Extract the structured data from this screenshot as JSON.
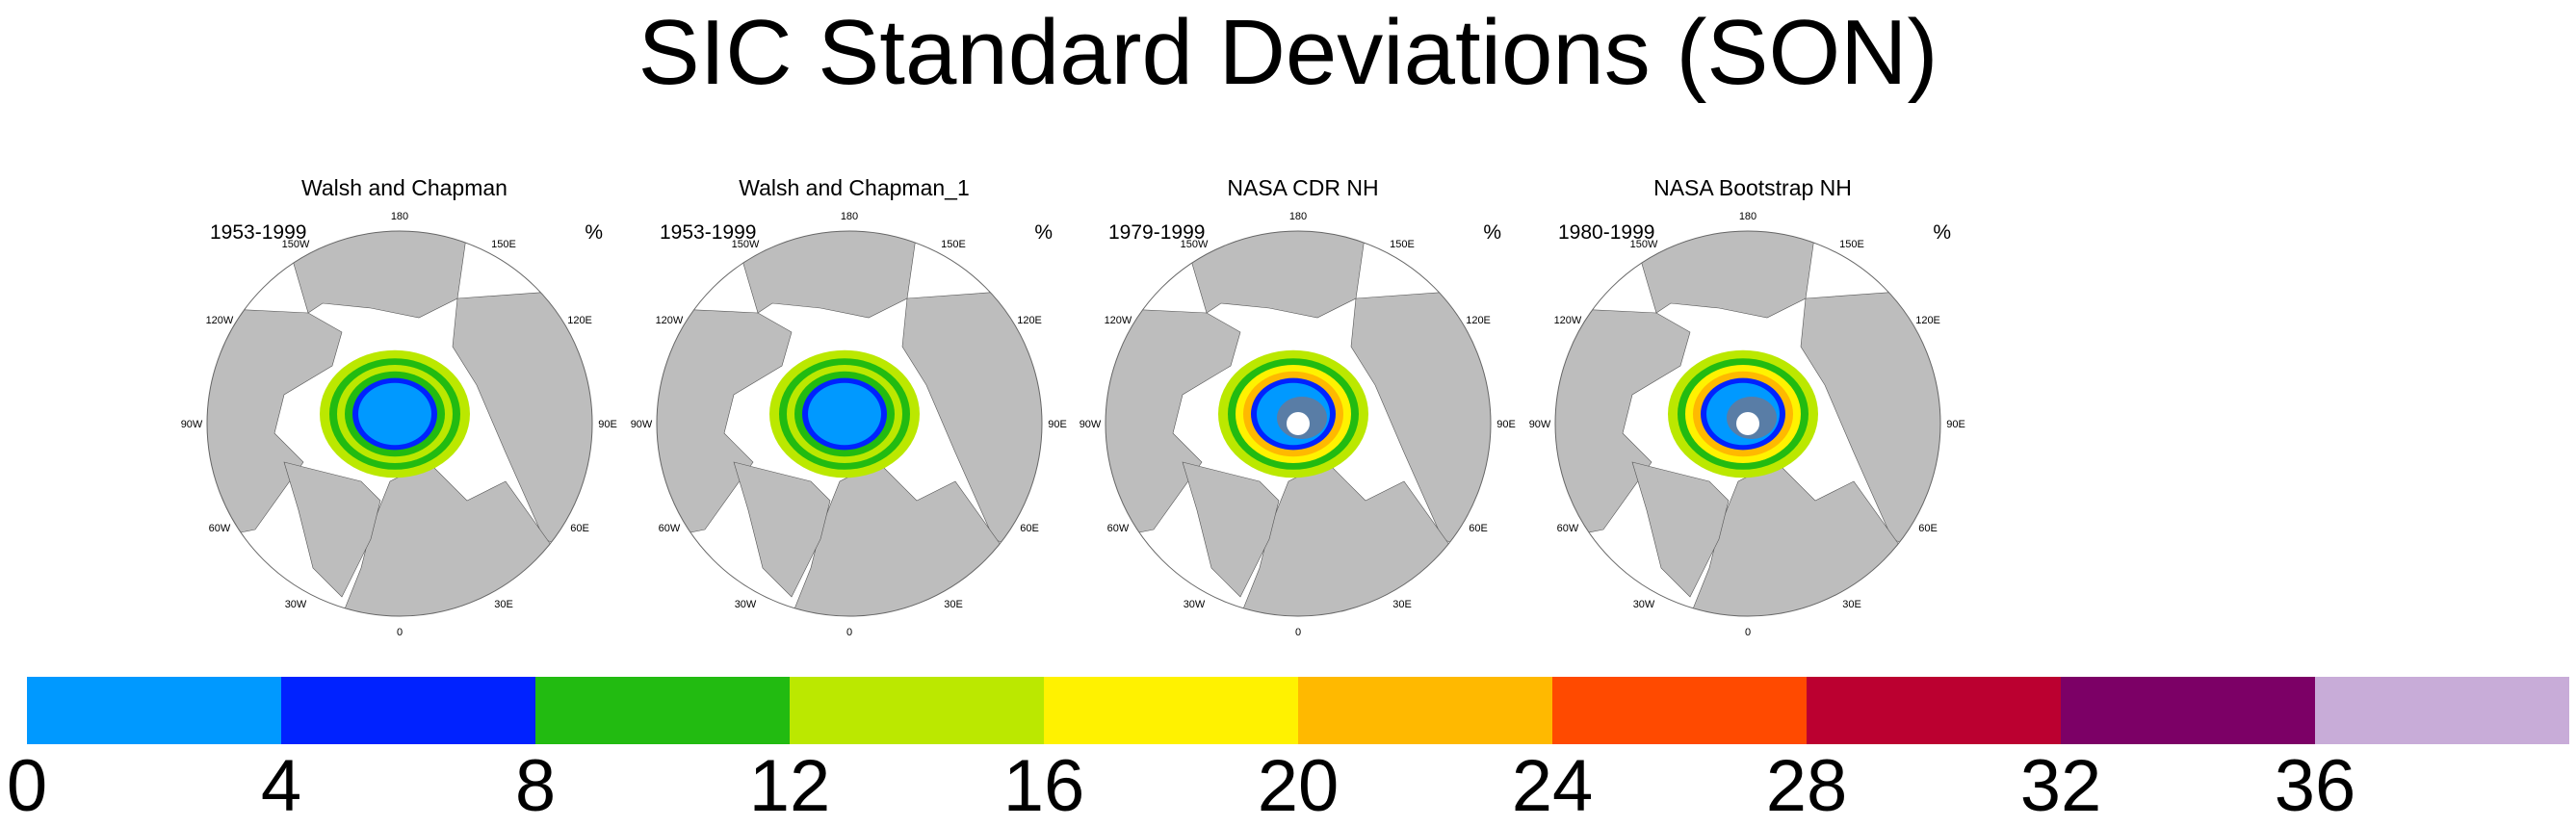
{
  "title": "SIC Standard Deviations (SON)",
  "unit": "%",
  "panels": [
    {
      "title": "Walsh and Chapman",
      "period": "1953-1999"
    },
    {
      "title": "Walsh and Chapman_1",
      "period": "1953-1999"
    },
    {
      "title": "NASA CDR NH",
      "period": "1979-1999"
    },
    {
      "title": "NASA Bootstrap NH",
      "period": "1980-1999"
    }
  ],
  "longitude_labels": [
    "180",
    "150E",
    "120E",
    "90E",
    "60E",
    "30E",
    "0",
    "30W",
    "60W",
    "90W",
    "120W",
    "150W"
  ],
  "colorbar": {
    "colors": [
      "#0099ff",
      "#0022ff",
      "#22bb11",
      "#bbe800",
      "#fff200",
      "#ffb900",
      "#ff4a00",
      "#bb0030",
      "#7c0066",
      "#c8acd8"
    ],
    "labels": [
      "0",
      "4",
      "8",
      "12",
      "16",
      "20",
      "24",
      "28",
      "32",
      "36"
    ]
  },
  "colors": {
    "land": "#bdbdbd",
    "ocean": "#ffffff"
  }
}
